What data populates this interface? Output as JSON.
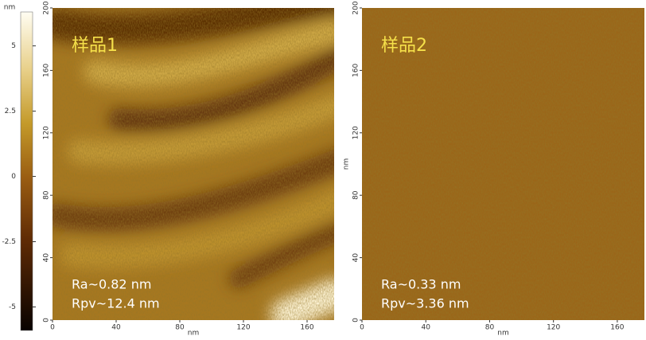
{
  "colorbar": {
    "unit": "nm",
    "range": [
      -5.9,
      6.3
    ],
    "ticks": [
      5,
      2.5,
      0,
      -2.5,
      -5
    ]
  },
  "panels": [
    {
      "label": "样品1",
      "ra": "Ra~0.82 nm",
      "rpv": "Rpv~12.4 nm",
      "x_axis_label": "nm",
      "xlim": [
        0,
        177
      ],
      "ylim": [
        0,
        200
      ],
      "xticks": [
        0,
        40,
        80,
        120,
        160
      ],
      "yticks": [
        0,
        40,
        80,
        120,
        160,
        200
      ]
    },
    {
      "label": "样品2",
      "ra": "Ra~0.33 nm",
      "rpv": "Rpv~3.36 nm",
      "x_axis_label": "nm",
      "y_axis_label": "nm",
      "xlim": [
        0,
        177
      ],
      "ylim": [
        0,
        200
      ],
      "xticks": [
        0,
        40,
        80,
        120,
        160
      ],
      "yticks": [
        0,
        40,
        80,
        120,
        160,
        200
      ]
    }
  ]
}
